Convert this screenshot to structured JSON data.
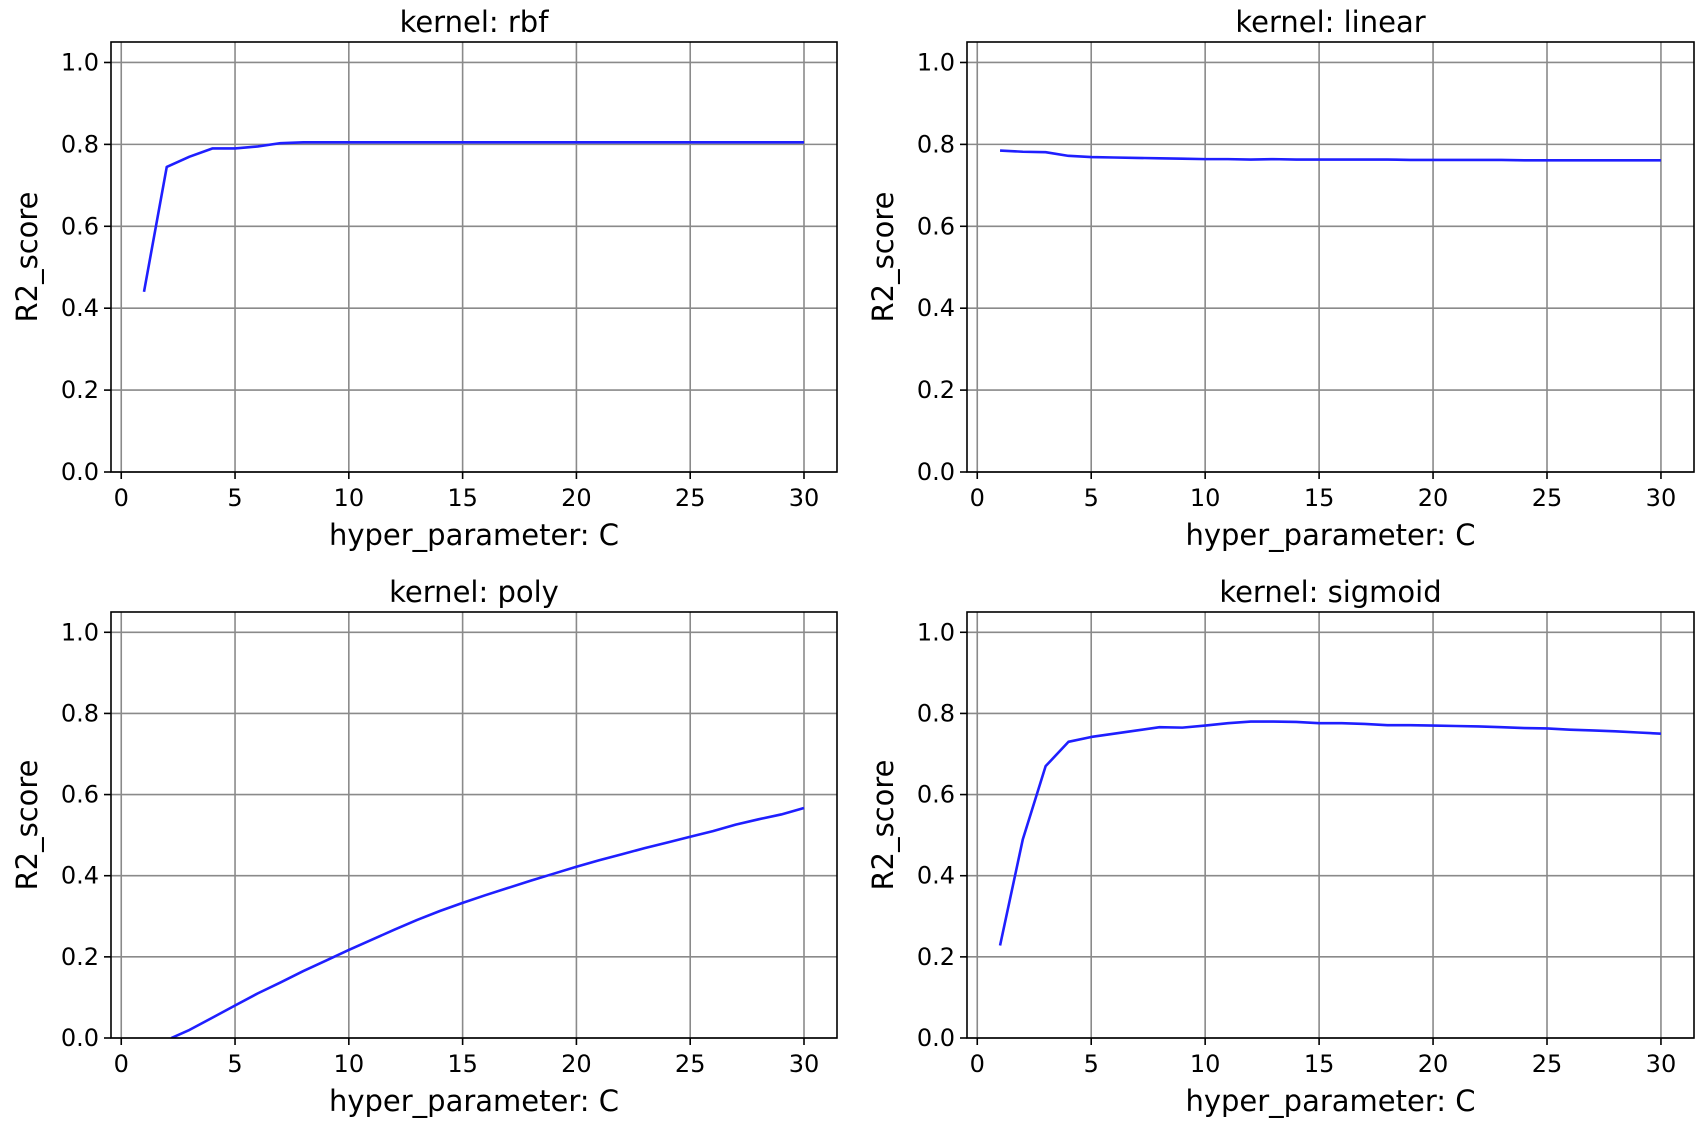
{
  "chart_data": [
    {
      "type": "line",
      "title": "kernel: rbf",
      "xlabel": "hyper_parameter: C",
      "ylabel": "R2_score",
      "xlim": [
        -0.45,
        31.45
      ],
      "ylim": [
        0.0,
        1.05
      ],
      "xticks": [
        0,
        5,
        10,
        15,
        20,
        25,
        30
      ],
      "xtick_labels": [
        "0",
        "5",
        "10",
        "15",
        "20",
        "25",
        "30"
      ],
      "yticks": [
        0.0,
        0.2,
        0.4,
        0.6,
        0.8,
        1.0
      ],
      "ytick_labels": [
        "0.0",
        "0.2",
        "0.4",
        "0.6",
        "0.8",
        "1.0"
      ],
      "grid": true,
      "series": [
        {
          "color": "#1f1fff",
          "x": [
            1,
            2,
            3,
            4,
            5,
            6,
            7,
            8,
            9,
            10,
            11,
            12,
            13,
            14,
            15,
            16,
            17,
            18,
            19,
            20,
            21,
            22,
            23,
            24,
            25,
            26,
            27,
            28,
            29,
            30
          ],
          "y": [
            0.44,
            0.745,
            0.77,
            0.79,
            0.79,
            0.795,
            0.803,
            0.805,
            0.805,
            0.805,
            0.805,
            0.805,
            0.805,
            0.805,
            0.805,
            0.805,
            0.805,
            0.805,
            0.805,
            0.805,
            0.805,
            0.805,
            0.805,
            0.805,
            0.805,
            0.805,
            0.805,
            0.805,
            0.805,
            0.805
          ]
        }
      ]
    },
    {
      "type": "line",
      "title": "kernel: linear",
      "xlabel": "hyper_parameter: C",
      "ylabel": "R2_score",
      "xlim": [
        -0.45,
        31.45
      ],
      "ylim": [
        0.0,
        1.05
      ],
      "xticks": [
        0,
        5,
        10,
        15,
        20,
        25,
        30
      ],
      "xtick_labels": [
        "0",
        "5",
        "10",
        "15",
        "20",
        "25",
        "30"
      ],
      "yticks": [
        0.0,
        0.2,
        0.4,
        0.6,
        0.8,
        1.0
      ],
      "ytick_labels": [
        "0.0",
        "0.2",
        "0.4",
        "0.6",
        "0.8",
        "1.0"
      ],
      "grid": true,
      "series": [
        {
          "color": "#1f1fff",
          "x": [
            1,
            2,
            3,
            4,
            5,
            6,
            7,
            8,
            9,
            10,
            11,
            12,
            13,
            14,
            15,
            16,
            17,
            18,
            19,
            20,
            21,
            22,
            23,
            24,
            25,
            26,
            27,
            28,
            29,
            30
          ],
          "y": [
            0.785,
            0.782,
            0.781,
            0.772,
            0.769,
            0.768,
            0.767,
            0.766,
            0.765,
            0.764,
            0.764,
            0.763,
            0.764,
            0.763,
            0.763,
            0.763,
            0.763,
            0.763,
            0.762,
            0.762,
            0.762,
            0.762,
            0.762,
            0.761,
            0.761,
            0.761,
            0.761,
            0.761,
            0.761,
            0.761
          ]
        }
      ]
    },
    {
      "type": "line",
      "title": "kernel: poly",
      "xlabel": "hyper_parameter: C",
      "ylabel": "R2_score",
      "xlim": [
        -0.45,
        31.45
      ],
      "ylim": [
        0.0,
        1.05
      ],
      "xticks": [
        0,
        5,
        10,
        15,
        20,
        25,
        30
      ],
      "xtick_labels": [
        "0",
        "5",
        "10",
        "15",
        "20",
        "25",
        "30"
      ],
      "yticks": [
        0.0,
        0.2,
        0.4,
        0.6,
        0.8,
        1.0
      ],
      "ytick_labels": [
        "0.0",
        "0.2",
        "0.4",
        "0.6",
        "0.8",
        "1.0"
      ],
      "grid": true,
      "series": [
        {
          "color": "#1f1fff",
          "x": [
            2.2,
            3,
            4,
            5,
            6,
            7,
            8,
            9,
            10,
            11,
            12,
            13,
            14,
            15,
            16,
            17,
            18,
            19,
            20,
            21,
            22,
            23,
            24,
            25,
            26,
            27,
            28,
            29,
            30
          ],
          "y": [
            0.0,
            0.02,
            0.05,
            0.08,
            0.11,
            0.137,
            0.165,
            0.191,
            0.217,
            0.242,
            0.267,
            0.291,
            0.313,
            0.333,
            0.352,
            0.37,
            0.388,
            0.405,
            0.422,
            0.438,
            0.453,
            0.468,
            0.482,
            0.496,
            0.51,
            0.526,
            0.539,
            0.551,
            0.567
          ]
        }
      ]
    },
    {
      "type": "line",
      "title": "kernel: sigmoid",
      "xlabel": "hyper_parameter: C",
      "ylabel": "R2_score",
      "xlim": [
        -0.45,
        31.45
      ],
      "ylim": [
        0.0,
        1.05
      ],
      "xticks": [
        0,
        5,
        10,
        15,
        20,
        25,
        30
      ],
      "xtick_labels": [
        "0",
        "5",
        "10",
        "15",
        "20",
        "25",
        "30"
      ],
      "yticks": [
        0.0,
        0.2,
        0.4,
        0.6,
        0.8,
        1.0
      ],
      "ytick_labels": [
        "0.0",
        "0.2",
        "0.4",
        "0.6",
        "0.8",
        "1.0"
      ],
      "grid": true,
      "series": [
        {
          "color": "#1f1fff",
          "x": [
            1,
            2,
            3,
            4,
            5,
            6,
            7,
            8,
            9,
            10,
            11,
            12,
            13,
            14,
            15,
            16,
            17,
            18,
            19,
            20,
            21,
            22,
            23,
            24,
            25,
            26,
            27,
            28,
            29,
            30
          ],
          "y": [
            0.228,
            0.49,
            0.67,
            0.73,
            0.742,
            0.75,
            0.758,
            0.766,
            0.765,
            0.77,
            0.776,
            0.78,
            0.78,
            0.779,
            0.776,
            0.776,
            0.774,
            0.771,
            0.771,
            0.77,
            0.769,
            0.768,
            0.766,
            0.764,
            0.763,
            0.76,
            0.758,
            0.756,
            0.753,
            0.75
          ]
        }
      ]
    }
  ]
}
